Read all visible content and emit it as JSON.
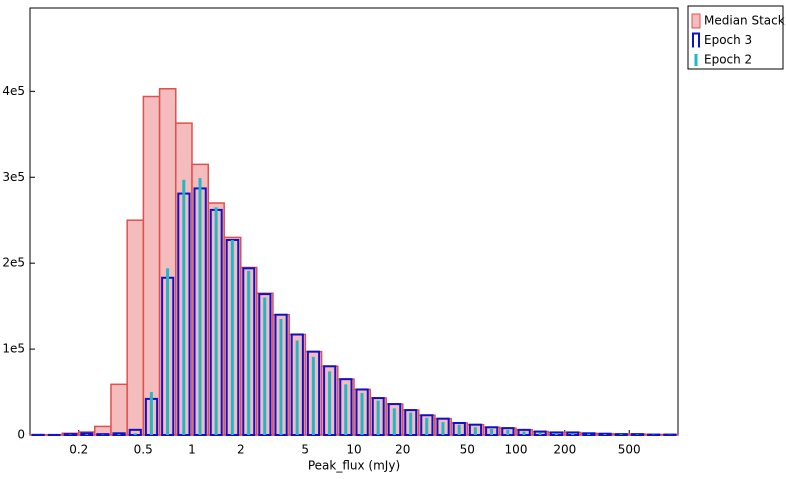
{
  "chart_data": {
    "type": "histogram",
    "xlabel": "Peak_flux (mJy)",
    "xlog": true,
    "bins": [
      0.1,
      0.126,
      0.158,
      0.2,
      0.251,
      0.316,
      0.398,
      0.501,
      0.631,
      0.794,
      1,
      1.26,
      1.58,
      2,
      2.51,
      3.16,
      3.98,
      5.01,
      6.31,
      7.94,
      10,
      12.6,
      15.8,
      20,
      25.1,
      31.6,
      39.8,
      50.1,
      63.1,
      79.4,
      100,
      126,
      158,
      200,
      251,
      316,
      398,
      501,
      631,
      794,
      1000
    ],
    "series": [
      {
        "name": "Median Stack",
        "color": "#f4bcbc",
        "edgecolor": "#e05050",
        "style": "filled",
        "values": [
          100,
          100,
          2000,
          3500,
          10000,
          59000,
          250000,
          394000,
          403000,
          363000,
          315000,
          270000,
          230000,
          195000,
          165000,
          140000,
          117000,
          97000,
          80000,
          65000,
          53000,
          43000,
          36000,
          29000,
          23000,
          19000,
          14000,
          12000,
          9000,
          8000,
          6000,
          4000,
          3000,
          3000,
          2000,
          1500,
          1000,
          1000,
          500,
          500
        ]
      },
      {
        "name": "Epoch 3",
        "color": "#1010c8",
        "style": "outline",
        "values": [
          200,
          100,
          1000,
          2000,
          1000,
          2000,
          6000,
          42000,
          183000,
          281000,
          287000,
          262000,
          227000,
          194000,
          164000,
          140000,
          117000,
          97000,
          80000,
          65000,
          53000,
          43000,
          36000,
          29000,
          23000,
          19000,
          14000,
          12000,
          9000,
          8000,
          6000,
          4000,
          3000,
          3000,
          2000,
          1500,
          1000,
          1000,
          500,
          500
        ]
      },
      {
        "name": "Epoch 2",
        "color": "#20b8c8",
        "style": "line",
        "values": [
          100,
          100,
          500,
          1000,
          500,
          1000,
          2000,
          50000,
          194000,
          297000,
          299000,
          265000,
          227000,
          191000,
          160000,
          135000,
          110000,
          91000,
          74000,
          59000,
          49000,
          40000,
          31000,
          26000,
          20000,
          15000,
          12000,
          9000,
          7000,
          6000,
          4000,
          3000,
          2000,
          2000,
          1500,
          1000,
          800,
          600,
          400,
          300
        ]
      }
    ],
    "xlim": [
      0.1,
      1000
    ],
    "ylim": [
      0,
      497000
    ],
    "xticks": [
      0.2,
      0.5,
      1,
      2,
      5,
      10,
      20,
      50,
      100,
      200,
      500
    ],
    "yticks": [
      0,
      {
        "value": 100000,
        "label": "1e5"
      },
      {
        "value": 200000,
        "label": "2e5"
      },
      {
        "value": 300000,
        "label": "3e5"
      },
      {
        "value": 400000,
        "label": "4e5"
      }
    ],
    "legend": "upper-right-outside"
  }
}
